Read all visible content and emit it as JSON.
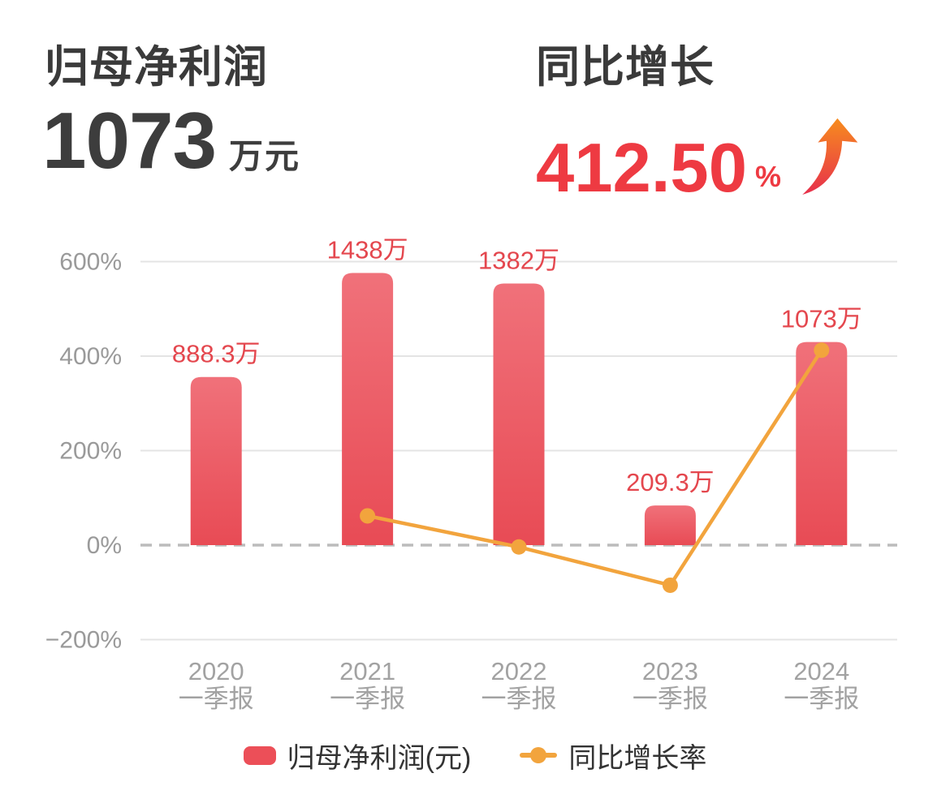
{
  "header": {
    "left": {
      "title": "归母净利润",
      "value": "1073",
      "unit": "万元"
    },
    "right": {
      "title": "同比增长",
      "value": "412.50",
      "unit": "%",
      "trend": "up"
    }
  },
  "chart_data": {
    "type": "bar+line",
    "categories": [
      {
        "year": "2020",
        "period": "一季报"
      },
      {
        "year": "2021",
        "period": "一季报"
      },
      {
        "year": "2022",
        "period": "一季报"
      },
      {
        "year": "2023",
        "period": "一季报"
      },
      {
        "year": "2024",
        "period": "一季报"
      }
    ],
    "bar_series": {
      "name": "归母净利润(元)",
      "unit": "万元",
      "values_wan": [
        888.3,
        1438,
        1382,
        209.3,
        1073
      ],
      "labels": [
        "888.3万",
        "1438万",
        "1382万",
        "209.3万",
        "1073万"
      ]
    },
    "line_series": {
      "name": "同比增长率",
      "unit": "%",
      "values_pct": [
        null,
        61.9,
        -3.9,
        -84.9,
        412.5
      ]
    },
    "y_axis": {
      "ticks": [
        {
          "label": "600%",
          "value": 600
        },
        {
          "label": "400%",
          "value": 400
        },
        {
          "label": "200%",
          "value": 200
        },
        {
          "label": "0%",
          "value": 0
        },
        {
          "label": "−200%",
          "value": -200
        }
      ],
      "zero_line_style": "dashed",
      "grid": true
    },
    "bar_display_scale": {
      "ref_value_wan": 1438,
      "ref_equiv_pct": 576
    },
    "legend_position": "bottom",
    "colors": {
      "bar_top": "#f0717a",
      "bar_bottom": "#e84b55",
      "bar_label": "#e4474e",
      "line": "#f2a43d",
      "grid_line": "#e4e4e4",
      "zero_line": "#bcbcbc",
      "y_axis_text": "#9a9a9a",
      "x_axis_text": "#a2a2a2"
    }
  },
  "legend": {
    "items": [
      {
        "label": "归母净利润(元)",
        "marker": "rounded-rect",
        "color": "#ec4f58"
      },
      {
        "label": "同比增长率",
        "marker": "line-dot",
        "color": "#f2a43d"
      }
    ]
  }
}
